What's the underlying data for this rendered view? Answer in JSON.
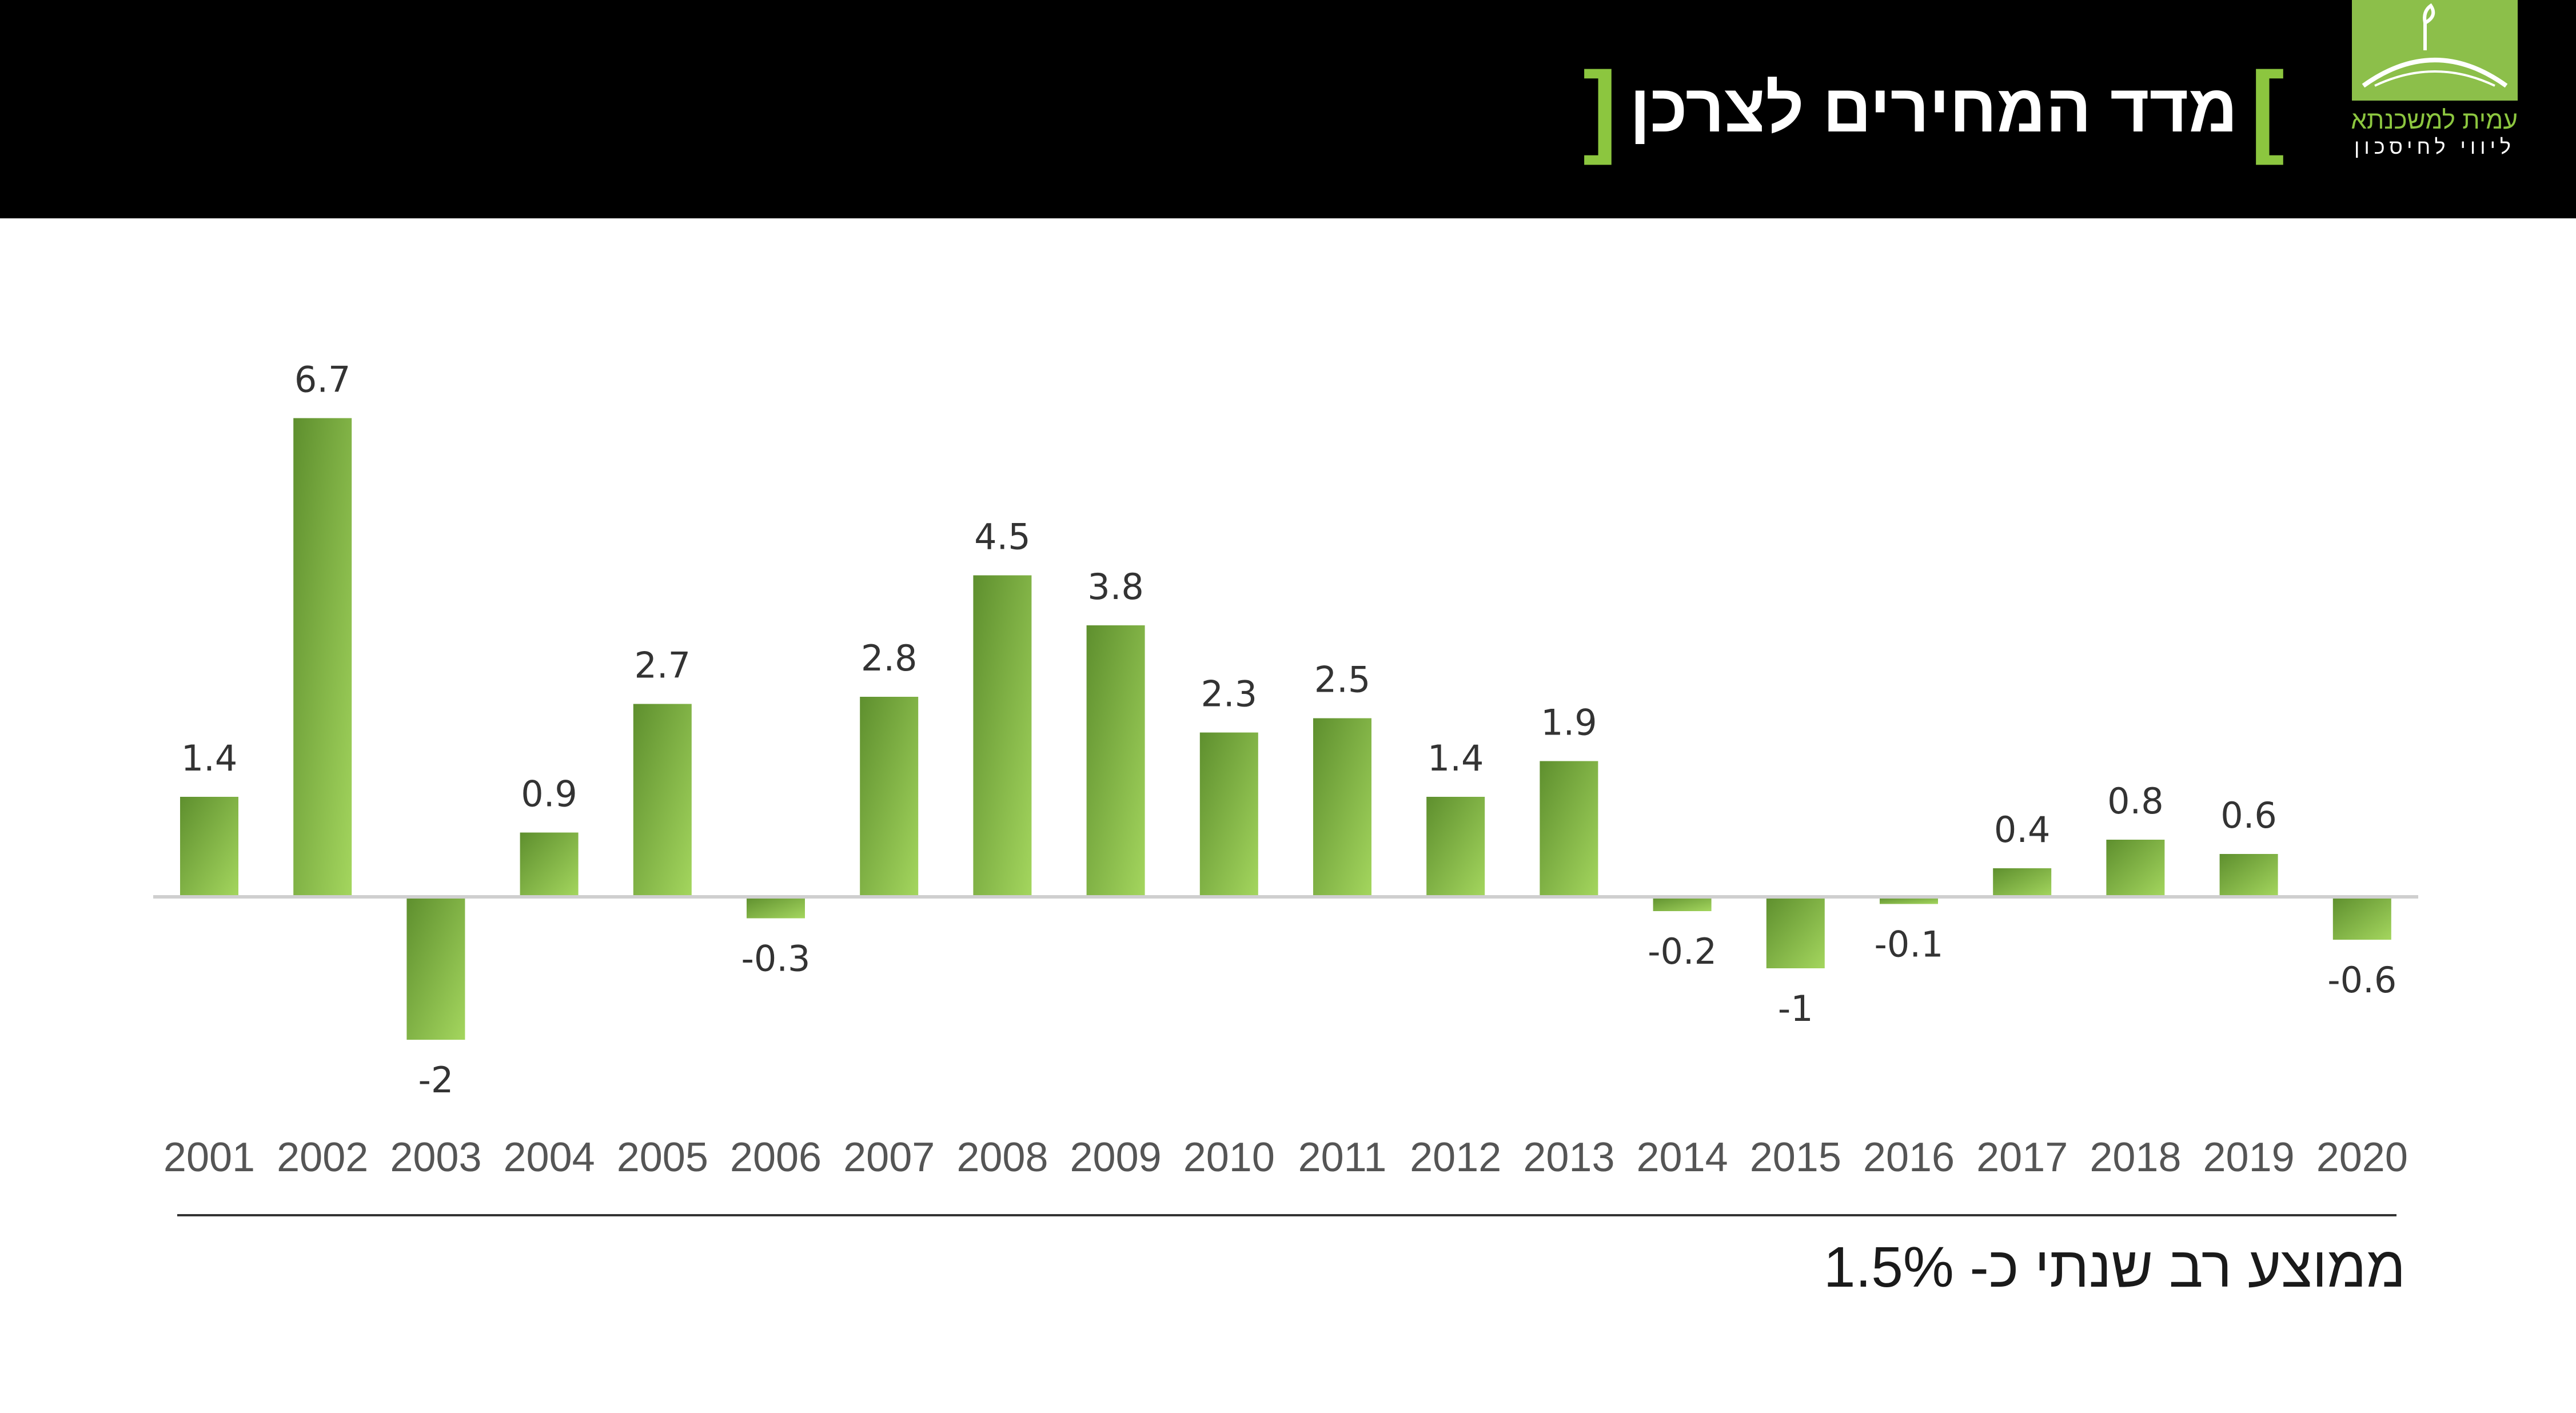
{
  "header": {
    "title": "מדד המחירים לצרכן",
    "bracket_open": "[",
    "bracket_close": "]",
    "logo_name": "עמית למשכנתא",
    "logo_tagline": "ליווי לחיסכון"
  },
  "colors": {
    "header_bg": "#000000",
    "accent": "#8cc63f",
    "bar_dark": "#5e8f2e",
    "bar_light": "#a4d65e"
  },
  "footer": {
    "average_text": "ממוצע רב שנתי כ- 1.5%"
  },
  "chart_data": {
    "type": "bar",
    "title": "מדד המחירים לצרכן",
    "categories": [
      "2001",
      "2002",
      "2003",
      "2004",
      "2005",
      "2006",
      "2007",
      "2008",
      "2009",
      "2010",
      "2011",
      "2012",
      "2013",
      "2014",
      "2015",
      "2016",
      "2017",
      "2018",
      "2019",
      "2020"
    ],
    "series": [
      {
        "values": [
          1.4,
          6.7,
          -2,
          0.9,
          2.7,
          -0.3,
          2.8,
          4.5,
          3.8,
          2.3,
          2.5,
          1.4,
          1.9,
          -0.2,
          -1,
          -0.1,
          0.4,
          0.8,
          0.6,
          -0.6
        ]
      }
    ],
    "data_labels": [
      "1.4",
      "6.7",
      "-2",
      "0.9",
      "2.7",
      "-0.3",
      "2.8",
      "4.5",
      "3.8",
      "2.3",
      "2.5",
      "1.4",
      "1.9",
      "-0.2",
      "-1",
      "-0.1",
      "0.4",
      "0.8",
      "0.6",
      "-0.6"
    ],
    "xlabel": "",
    "ylabel": "",
    "grid": false,
    "legend": "none"
  }
}
